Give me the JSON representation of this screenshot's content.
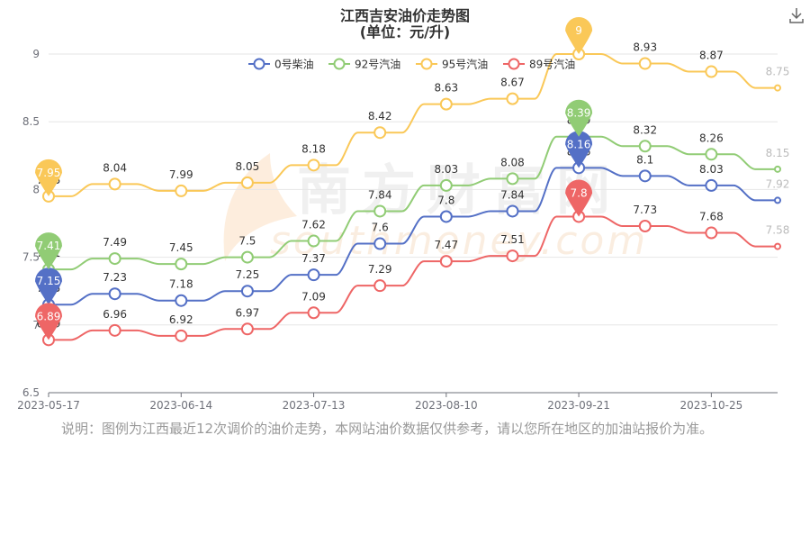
{
  "title": "江西吉安油价走势图",
  "subtitle": "(单位：元/升)",
  "note": "说明：图例为江西最近12次调价的油价走势，本网站油价数据仅供参考，请以您所在地区的加油站报价为准。",
  "watermark": {
    "cn": "南方财富网",
    "en": "southmoney.com"
  },
  "download_icon": "download-icon",
  "chart_data": {
    "type": "line",
    "title": "江西吉安油价走势图",
    "subtitle": "(单位：元/升)",
    "xlabel": "",
    "ylabel": "",
    "ylim": [
      6.5,
      9
    ],
    "yticks": [
      "6.5",
      "7",
      "7.5",
      "8",
      "8.5",
      "9"
    ],
    "xtick_labels": [
      "2023-05-17",
      "2023-06-14",
      "2023-07-13",
      "2023-08-10",
      "2023-09-21",
      "2023-10-25"
    ],
    "xtick_index": [
      0,
      2,
      4,
      6,
      8,
      10
    ],
    "categories": [
      "2023-05-17",
      "",
      "2023-06-14",
      "",
      "2023-07-13",
      "",
      "2023-08-10",
      "",
      "2023-09-21",
      "",
      "2023-10-25",
      ""
    ],
    "grid": true,
    "legend_position": "top-center",
    "series": [
      {
        "name": "0号柴油",
        "color": "#5470c6",
        "values": [
          7.15,
          7.23,
          7.18,
          7.25,
          7.37,
          7.6,
          7.8,
          7.84,
          8.16,
          8.1,
          8.03,
          7.92
        ],
        "pins": [
          0,
          8
        ]
      },
      {
        "name": "92号汽油",
        "color": "#91cc75",
        "values": [
          7.41,
          7.49,
          7.45,
          7.5,
          7.62,
          7.84,
          8.03,
          8.08,
          8.39,
          8.32,
          8.26,
          8.15
        ],
        "pins": [
          0,
          8
        ]
      },
      {
        "name": "95号汽油",
        "color": "#fac858",
        "values": [
          7.95,
          8.04,
          7.99,
          8.05,
          8.18,
          8.42,
          8.63,
          8.67,
          9,
          8.93,
          8.87,
          8.75
        ],
        "pins": [
          0,
          8
        ]
      },
      {
        "name": "89号汽油",
        "color": "#ee6666",
        "values": [
          6.89,
          6.96,
          6.92,
          6.97,
          7.09,
          7.29,
          7.47,
          7.51,
          7.8,
          7.73,
          7.68,
          7.58
        ],
        "pins": [
          0,
          8
        ]
      }
    ]
  }
}
